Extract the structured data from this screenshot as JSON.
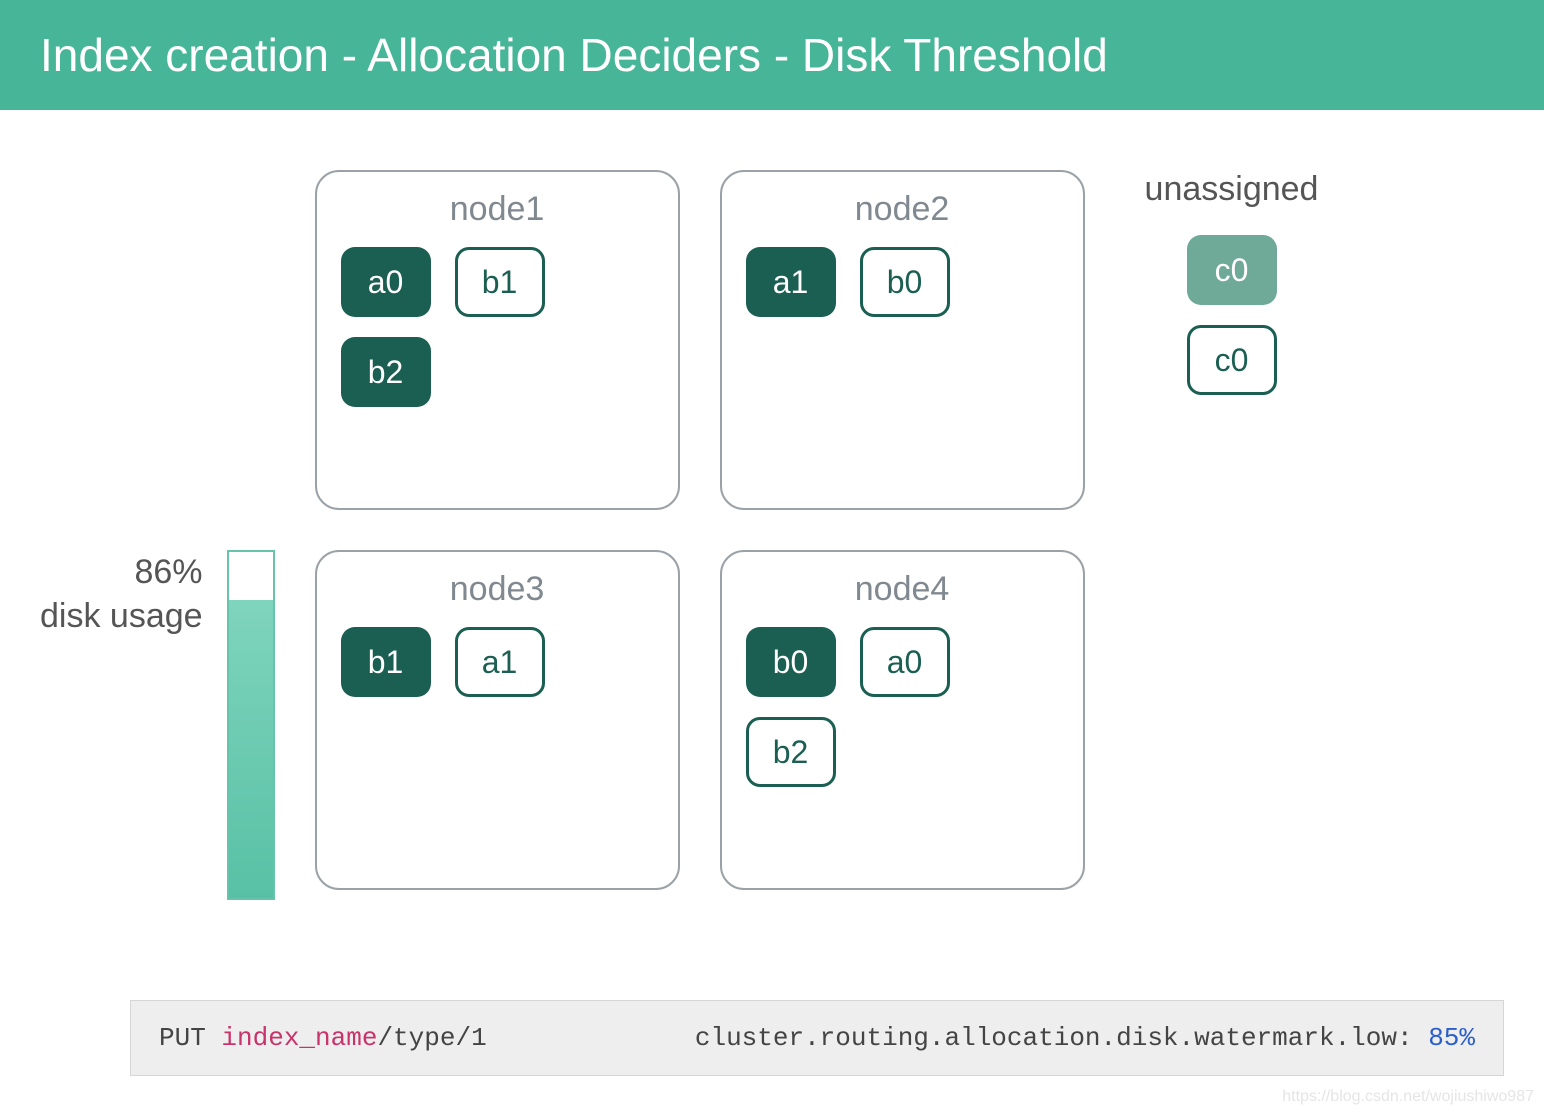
{
  "header": {
    "title": "Index creation - Allocation Deciders - Disk Threshold"
  },
  "colors": {
    "header_bg": "#47b597",
    "header_text": "#ffffff",
    "node_border": "#9aa2a8",
    "node_title": "#808890",
    "shard_filled_bg": "#1b5f53",
    "shard_filled_text": "#ffffff",
    "shard_outline_border": "#1b5f53",
    "shard_outline_text": "#1b5f53",
    "unassigned_filled_bg": "#6fa997",
    "disk_bar_border": "#66c4aa",
    "disk_fill_top": "#7fd4bd",
    "disk_fill_bottom": "#58c1a5",
    "code_bg": "#eeeeee",
    "code_index": "#c8336b",
    "code_value": "#2a5fc9",
    "label_text": "#555555"
  },
  "disk": {
    "percent_label": "86%",
    "usage_label": "disk usage",
    "fill_percent": 86
  },
  "nodes": [
    {
      "name": "node1",
      "shards": [
        {
          "label": "a0",
          "style": "filled"
        },
        {
          "label": "b1",
          "style": "outline"
        },
        {
          "label": "b2",
          "style": "filled"
        }
      ]
    },
    {
      "name": "node2",
      "shards": [
        {
          "label": "a1",
          "style": "filled"
        },
        {
          "label": "b0",
          "style": "outline"
        }
      ]
    },
    {
      "name": "node3",
      "shards": [
        {
          "label": "b1",
          "style": "filled"
        },
        {
          "label": "a1",
          "style": "outline"
        }
      ]
    },
    {
      "name": "node4",
      "shards": [
        {
          "label": "b0",
          "style": "filled"
        },
        {
          "label": "a0",
          "style": "outline"
        },
        {
          "label": "b2",
          "style": "outline"
        }
      ]
    }
  ],
  "unassigned": {
    "title": "unassigned",
    "shards": [
      {
        "label": "c0",
        "style": "unassigned_filled"
      },
      {
        "label": "c0",
        "style": "outline"
      }
    ]
  },
  "code": {
    "put": "PUT ",
    "index": "index_name",
    "path": "/type/1",
    "setting": "cluster.routing.allocation.disk.watermark.low: ",
    "value": "85%"
  },
  "watermark_text": "https://blog.csdn.net/wojiushiwo987"
}
